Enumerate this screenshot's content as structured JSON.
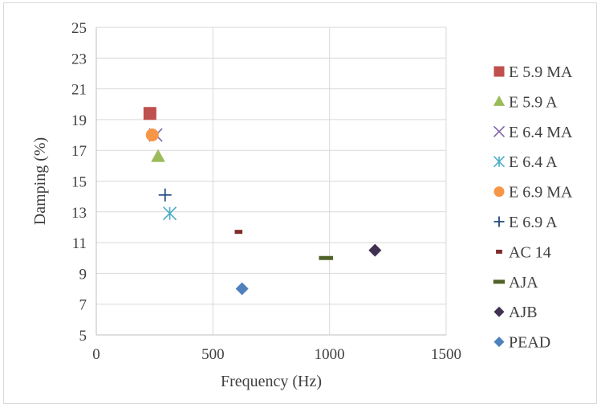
{
  "chart_data": {
    "type": "scatter",
    "xlabel": "Frequency (Hz)",
    "ylabel": "Damping (%)",
    "xlim": [
      0,
      1500
    ],
    "ylim": [
      5,
      25
    ],
    "xticks": [
      0,
      500,
      1000,
      1500
    ],
    "yticks": [
      5,
      7,
      9,
      11,
      13,
      15,
      17,
      19,
      21,
      23,
      25
    ],
    "grid": true,
    "legend_position": "right",
    "series": [
      {
        "name": "E 5.9 MA",
        "marker": "square",
        "color": "#c0504d",
        "x": [
          230
        ],
        "y": [
          19.4
        ]
      },
      {
        "name": "E 5.9 A",
        "marker": "triangle",
        "color": "#9bbb59",
        "x": [
          265
        ],
        "y": [
          16.6
        ]
      },
      {
        "name": "E 6.4 MA",
        "marker": "x",
        "color": "#8064a2",
        "x": [
          255
        ],
        "y": [
          18.0
        ]
      },
      {
        "name": "E 6.4 A",
        "marker": "star",
        "color": "#4bacc6",
        "x": [
          315
        ],
        "y": [
          12.9
        ]
      },
      {
        "name": "E 6.9 MA",
        "marker": "circle",
        "color": "#f79646",
        "x": [
          240
        ],
        "y": [
          18.0
        ]
      },
      {
        "name": "E 6.9 A",
        "marker": "plus",
        "color": "#1f497d",
        "x": [
          295
        ],
        "y": [
          14.1
        ]
      },
      {
        "name": "AC 14",
        "marker": "dash",
        "color": "#7f2b2b",
        "x": [
          610
        ],
        "y": [
          11.7
        ]
      },
      {
        "name": "AJA",
        "marker": "longdash",
        "color": "#4f6228",
        "x": [
          985
        ],
        "y": [
          10.0
        ]
      },
      {
        "name": "AJB",
        "marker": "diamond",
        "color": "#403152",
        "x": [
          1195
        ],
        "y": [
          10.5
        ]
      },
      {
        "name": "PEAD",
        "marker": "diamond",
        "color": "#4f81bd",
        "x": [
          625
        ],
        "y": [
          8.0
        ]
      }
    ]
  }
}
